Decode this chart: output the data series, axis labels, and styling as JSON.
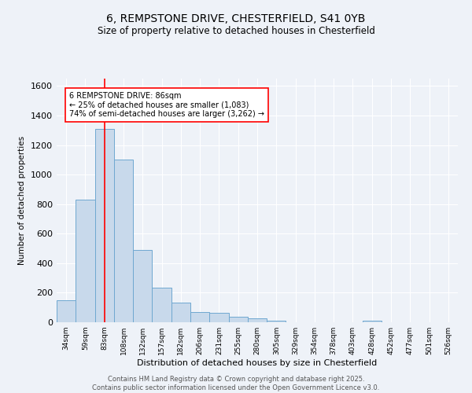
{
  "title1": "6, REMPSTONE DRIVE, CHESTERFIELD, S41 0YB",
  "title2": "Size of property relative to detached houses in Chesterfield",
  "xlabel": "Distribution of detached houses by size in Chesterfield",
  "ylabel": "Number of detached properties",
  "categories": [
    "34sqm",
    "59sqm",
    "83sqm",
    "108sqm",
    "132sqm",
    "157sqm",
    "182sqm",
    "206sqm",
    "231sqm",
    "255sqm",
    "280sqm",
    "305sqm",
    "329sqm",
    "354sqm",
    "378sqm",
    "403sqm",
    "428sqm",
    "452sqm",
    "477sqm",
    "501sqm",
    "526sqm"
  ],
  "values": [
    150,
    830,
    1310,
    1100,
    490,
    235,
    135,
    70,
    65,
    37,
    25,
    13,
    0,
    0,
    0,
    0,
    12,
    0,
    0,
    0,
    0
  ],
  "bar_color": "#c8d9eb",
  "bar_edge_color": "#6fa8d0",
  "vline_x": 2,
  "vline_color": "red",
  "annotation_text": "6 REMPSTONE DRIVE: 86sqm\n← 25% of detached houses are smaller (1,083)\n74% of semi-detached houses are larger (3,262) →",
  "annotation_box_color": "white",
  "annotation_box_edgecolor": "red",
  "ylim": [
    0,
    1650
  ],
  "yticks": [
    0,
    200,
    400,
    600,
    800,
    1000,
    1200,
    1400,
    1600
  ],
  "footer1": "Contains HM Land Registry data © Crown copyright and database right 2025.",
  "footer2": "Contains public sector information licensed under the Open Government Licence v3.0.",
  "bg_color": "#eef2f8",
  "plot_bg_color": "#eef2f8"
}
